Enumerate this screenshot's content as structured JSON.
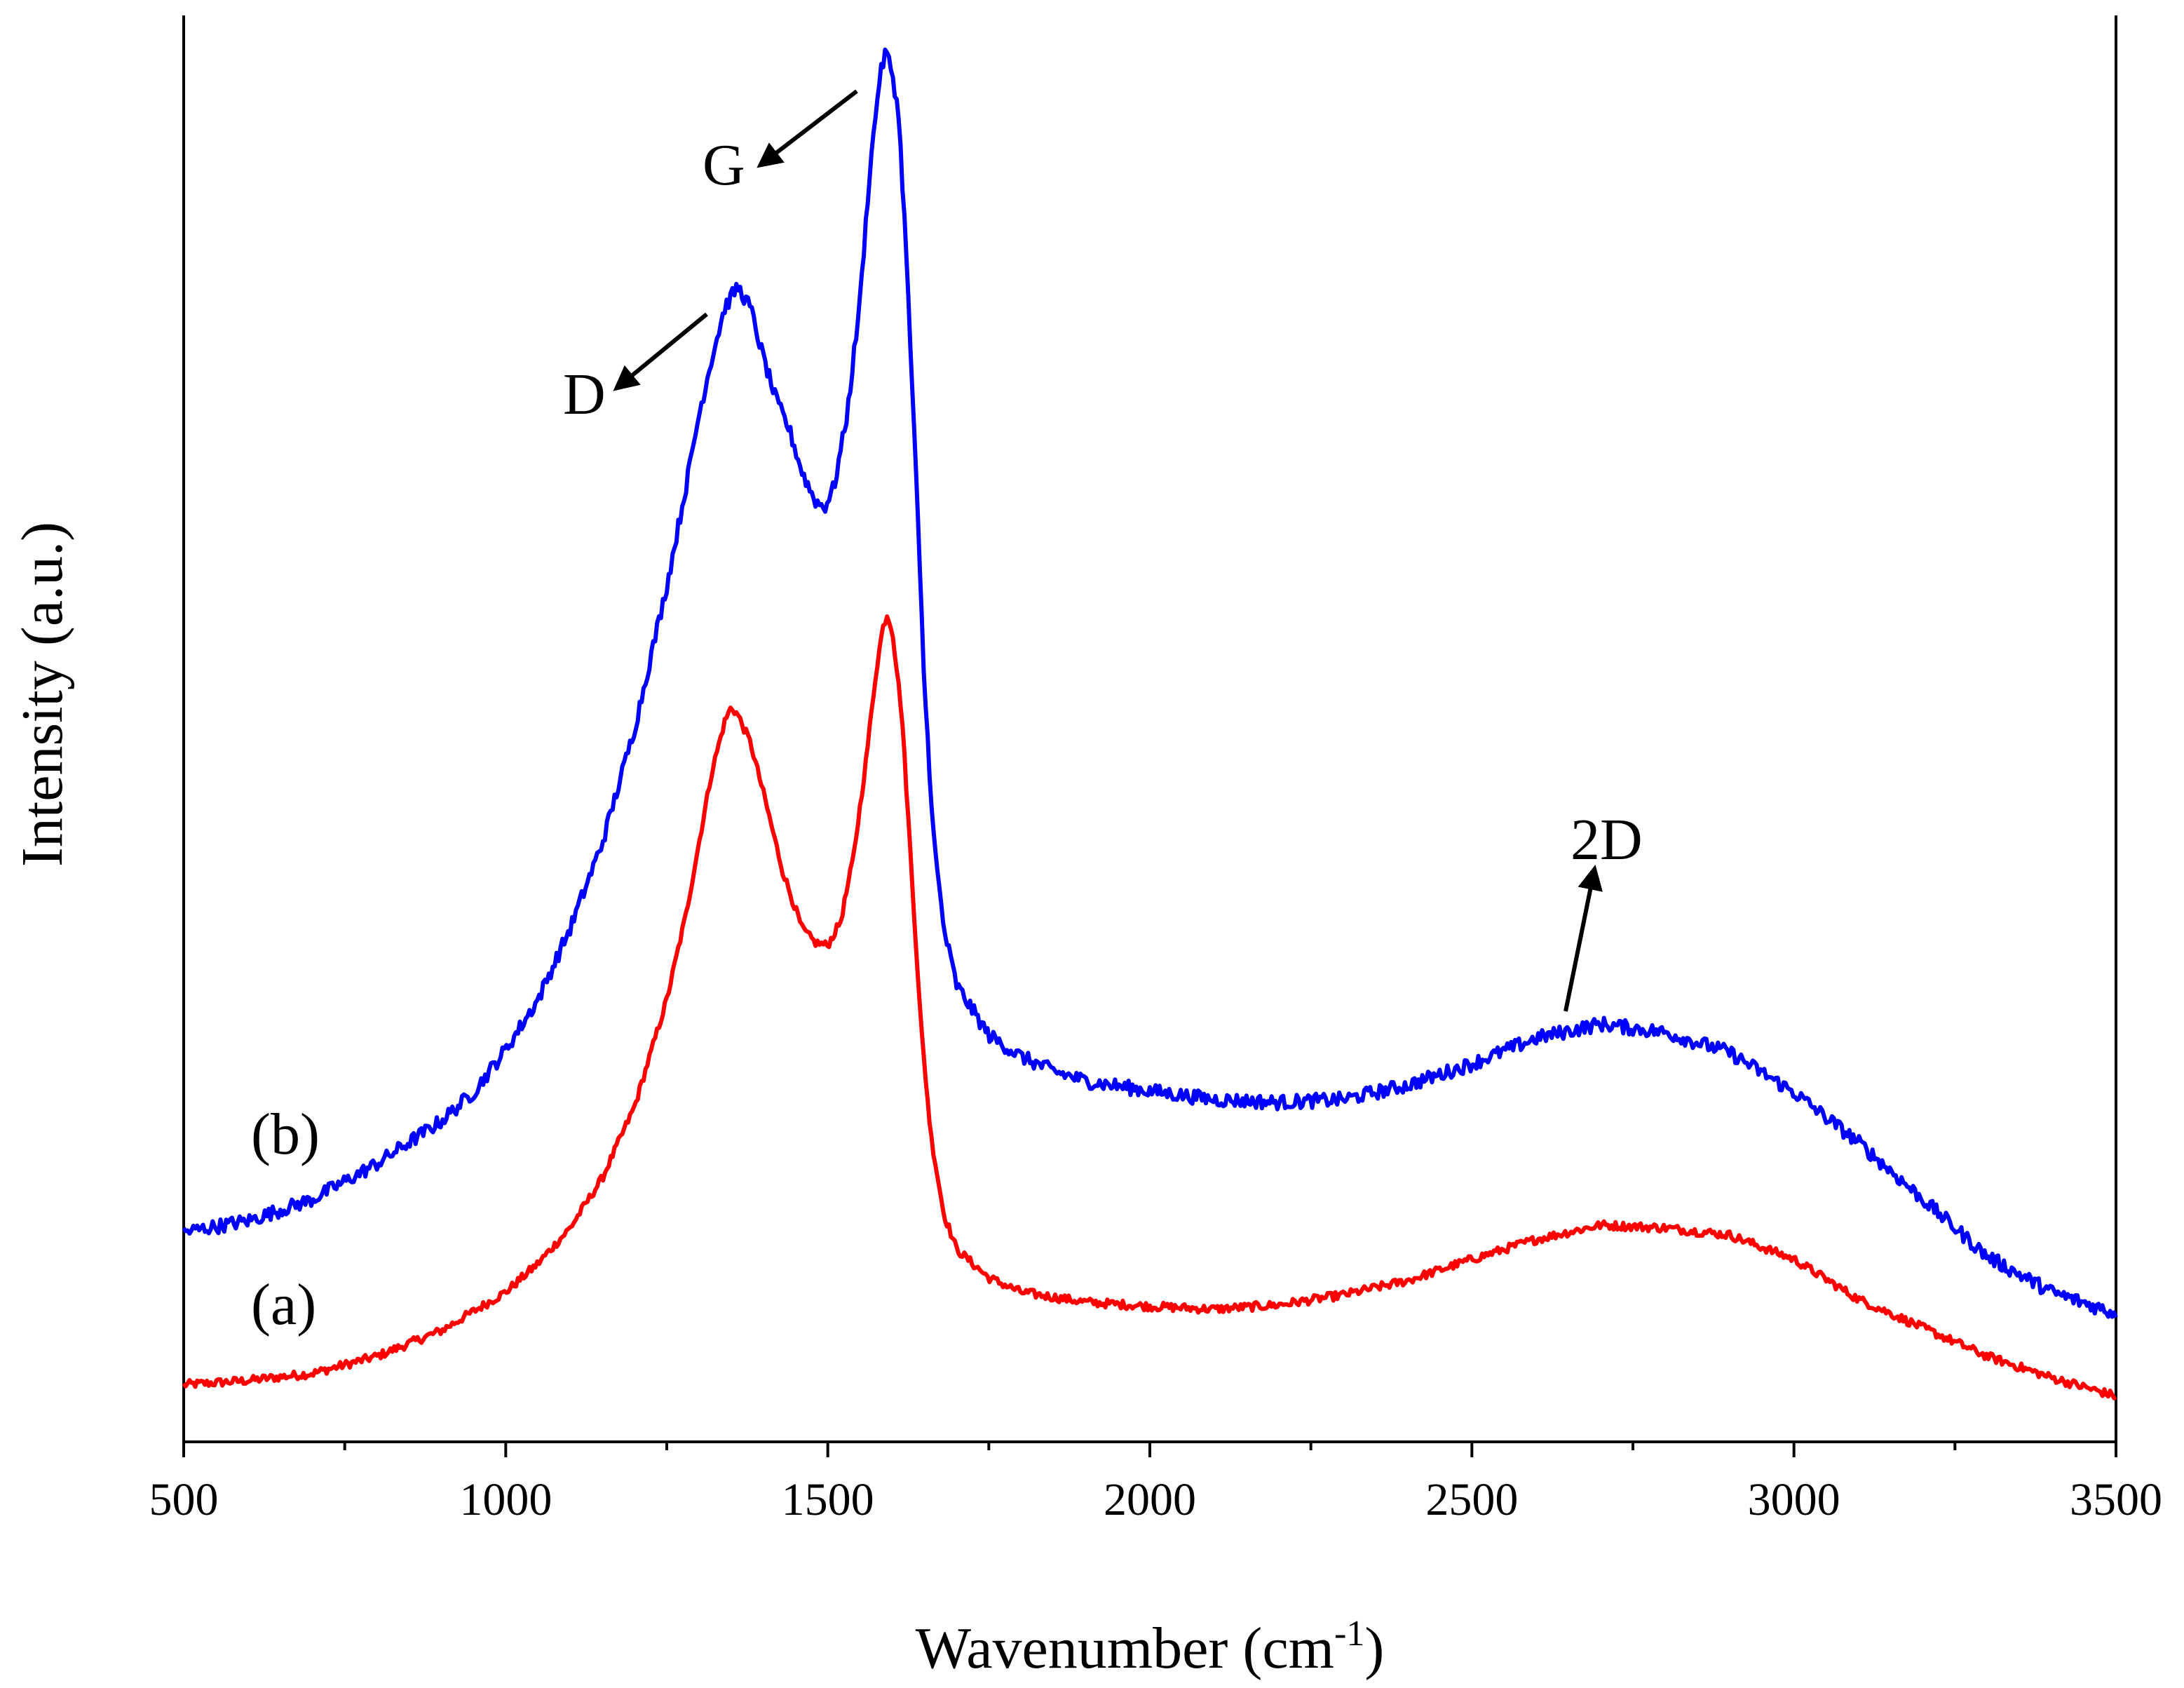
{
  "chart_data": {
    "type": "line",
    "title": "",
    "xlabel": "Wavenumber (cm",
    "xlabel_sup": "-1",
    "xlabel_end": ")",
    "ylabel": "Intensity (a.u.)",
    "xlim": [
      500,
      3500
    ],
    "ylim": [
      0,
      100
    ],
    "x_major_ticks": [
      500,
      1000,
      1500,
      2000,
      2500,
      3000,
      3500
    ],
    "x_minor_ticks": [
      750,
      1250,
      1750,
      2250,
      2750,
      3250
    ],
    "y_ticks_labeled": false,
    "grid": false,
    "legend": "none",
    "colors": {
      "a": "#ff0000",
      "b": "#0000ff",
      "axis": "#000000"
    },
    "series": [
      {
        "name": "(a)",
        "color": "#ff0000",
        "points": [
          [
            500,
            4.0
          ],
          [
            600,
            4.3
          ],
          [
            700,
            4.8
          ],
          [
            800,
            6.0
          ],
          [
            900,
            7.8
          ],
          [
            1000,
            10.5
          ],
          [
            1050,
            12.5
          ],
          [
            1100,
            15.0
          ],
          [
            1150,
            18.5
          ],
          [
            1200,
            23.5
          ],
          [
            1250,
            31.0
          ],
          [
            1280,
            37.0
          ],
          [
            1300,
            42.0
          ],
          [
            1320,
            47.0
          ],
          [
            1340,
            50.5
          ],
          [
            1350,
            51.5
          ],
          [
            1360,
            51.0
          ],
          [
            1380,
            49.0
          ],
          [
            1400,
            45.5
          ],
          [
            1430,
            40.0
          ],
          [
            1460,
            36.0
          ],
          [
            1480,
            35.0
          ],
          [
            1500,
            34.8
          ],
          [
            1520,
            36.5
          ],
          [
            1540,
            41.0
          ],
          [
            1560,
            48.0
          ],
          [
            1575,
            54.0
          ],
          [
            1585,
            57.0
          ],
          [
            1592,
            58.0
          ],
          [
            1600,
            57.0
          ],
          [
            1615,
            51.0
          ],
          [
            1630,
            40.0
          ],
          [
            1645,
            29.0
          ],
          [
            1660,
            21.5
          ],
          [
            1680,
            16.0
          ],
          [
            1700,
            13.5
          ],
          [
            1750,
            11.5
          ],
          [
            1800,
            10.5
          ],
          [
            1900,
            9.8
          ],
          [
            2000,
            9.5
          ],
          [
            2100,
            9.3
          ],
          [
            2200,
            9.6
          ],
          [
            2300,
            10.3
          ],
          [
            2400,
            11.3
          ],
          [
            2500,
            12.8
          ],
          [
            2600,
            14.2
          ],
          [
            2700,
            15.2
          ],
          [
            2800,
            15.0
          ],
          [
            2900,
            14.5
          ],
          [
            3000,
            12.8
          ],
          [
            3100,
            10.0
          ],
          [
            3200,
            8.0
          ],
          [
            3300,
            6.0
          ],
          [
            3400,
            4.5
          ],
          [
            3500,
            3.2
          ]
        ]
      },
      {
        "name": "(b)",
        "color": "#0000ff",
        "points": [
          [
            500,
            14.7
          ],
          [
            600,
            15.5
          ],
          [
            700,
            17.0
          ],
          [
            800,
            19.5
          ],
          [
            900,
            22.5
          ],
          [
            950,
            24.5
          ],
          [
            1000,
            27.5
          ],
          [
            1050,
            31.0
          ],
          [
            1100,
            36.0
          ],
          [
            1150,
            42.0
          ],
          [
            1200,
            50.0
          ],
          [
            1250,
            60.0
          ],
          [
            1280,
            67.0
          ],
          [
            1300,
            72.0
          ],
          [
            1320,
            76.0
          ],
          [
            1340,
            79.5
          ],
          [
            1360,
            81.0
          ],
          [
            1380,
            79.5
          ],
          [
            1400,
            76.0
          ],
          [
            1420,
            73.0
          ],
          [
            1440,
            71.0
          ],
          [
            1460,
            68.0
          ],
          [
            1480,
            66.0
          ],
          [
            1495,
            65.5
          ],
          [
            1510,
            67.0
          ],
          [
            1530,
            72.0
          ],
          [
            1550,
            80.0
          ],
          [
            1565,
            89.0
          ],
          [
            1580,
            95.5
          ],
          [
            1590,
            97.5
          ],
          [
            1600,
            96.0
          ],
          [
            1610,
            93.0
          ],
          [
            1620,
            85.0
          ],
          [
            1635,
            70.0
          ],
          [
            1650,
            53.0
          ],
          [
            1665,
            42.0
          ],
          [
            1680,
            36.0
          ],
          [
            1700,
            32.0
          ],
          [
            1750,
            28.5
          ],
          [
            1800,
            27.0
          ],
          [
            1850,
            26.0
          ],
          [
            1900,
            25.3
          ],
          [
            2000,
            24.6
          ],
          [
            2100,
            24.0
          ],
          [
            2200,
            23.8
          ],
          [
            2300,
            24.0
          ],
          [
            2400,
            25.0
          ],
          [
            2500,
            26.5
          ],
          [
            2600,
            28.3
          ],
          [
            2700,
            29.3
          ],
          [
            2800,
            28.7
          ],
          [
            2900,
            27.3
          ],
          [
            3000,
            24.5
          ],
          [
            3100,
            21.0
          ],
          [
            3200,
            17.0
          ],
          [
            3300,
            13.0
          ],
          [
            3400,
            10.5
          ],
          [
            3500,
            9.0
          ]
        ]
      }
    ],
    "annotations": [
      {
        "label": "G",
        "peak_x": 1590
      },
      {
        "label": "D",
        "peak_x": 1350
      },
      {
        "label": "2D",
        "peak_x": 2690
      }
    ],
    "series_labels": [
      "(b)",
      "(a)"
    ]
  }
}
